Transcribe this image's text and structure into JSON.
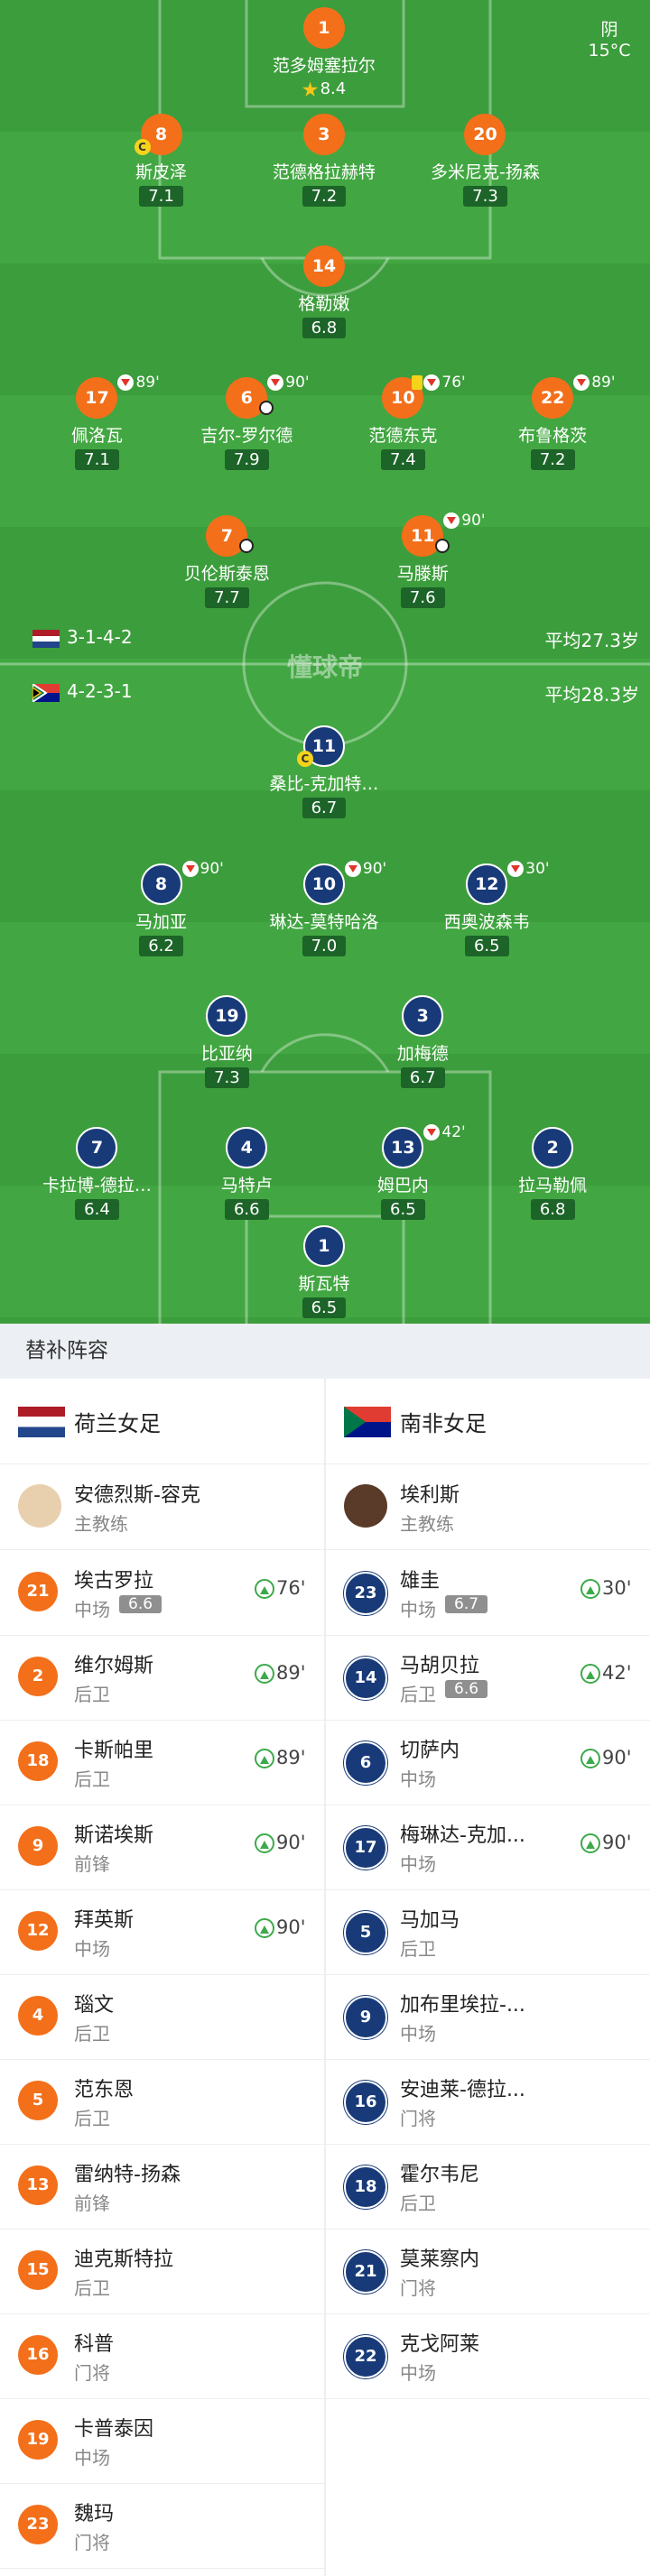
{
  "weather": {
    "condition": "阴",
    "temperature": "15°C"
  },
  "watermark": "懂球帝",
  "home": {
    "formation": "3-1-4-2",
    "average_age": "平均27.3岁",
    "players": [
      {
        "number": "1",
        "name": "范多姆塞拉尔",
        "rating": "8.4",
        "best": true
      },
      {
        "number": "8",
        "name": "斯皮泽",
        "rating": "7.1",
        "captain": "C"
      },
      {
        "number": "3",
        "name": "范德格拉赫特",
        "rating": "7.2"
      },
      {
        "number": "20",
        "name": "多米尼克-扬森",
        "rating": "7.3"
      },
      {
        "number": "14",
        "name": "格勒嫩",
        "rating": "6.8"
      },
      {
        "number": "17",
        "name": "佩洛瓦",
        "rating": "7.1",
        "sub_minute": "89'"
      },
      {
        "number": "6",
        "name": "吉尔-罗尔德",
        "rating": "7.9",
        "sub_minute": "90'",
        "goal": true
      },
      {
        "number": "10",
        "name": "范德东克",
        "rating": "7.4",
        "sub_minute": "76'",
        "yellow_card": true
      },
      {
        "number": "22",
        "name": "布鲁格茨",
        "rating": "7.2",
        "sub_minute": "89'"
      },
      {
        "number": "7",
        "name": "贝伦斯泰恩",
        "rating": "7.7",
        "goal": true
      },
      {
        "number": "11",
        "name": "马滕斯",
        "rating": "7.6",
        "sub_minute": "90'",
        "assist": true
      }
    ]
  },
  "away": {
    "formation": "4-2-3-1",
    "average_age": "平均28.3岁",
    "players": [
      {
        "number": "11",
        "name": "桑比-克加特…",
        "rating": "6.7",
        "captain": "C"
      },
      {
        "number": "8",
        "name": "马加亚",
        "rating": "6.2",
        "sub_minute": "90'"
      },
      {
        "number": "10",
        "name": "琳达-莫特哈洛",
        "rating": "7.0",
        "sub_minute": "90'"
      },
      {
        "number": "12",
        "name": "西奥波森韦",
        "rating": "6.5",
        "sub_minute": "30'"
      },
      {
        "number": "19",
        "name": "比亚纳",
        "rating": "7.3"
      },
      {
        "number": "3",
        "name": "加梅德",
        "rating": "6.7"
      },
      {
        "number": "7",
        "name": "卡拉博-德拉…",
        "rating": "6.4"
      },
      {
        "number": "4",
        "name": "马特卢",
        "rating": "6.6"
      },
      {
        "number": "13",
        "name": "姆巴内",
        "rating": "6.5",
        "sub_minute": "42'"
      },
      {
        "number": "2",
        "name": "拉马勒佩",
        "rating": "6.8"
      },
      {
        "number": "1",
        "name": "斯瓦特",
        "rating": "6.5"
      }
    ]
  },
  "bench": {
    "title": "替补阵容",
    "teams": [
      {
        "name": "荷兰女足",
        "coach": {
          "name": "安德烈斯-容克",
          "role": "主教练"
        },
        "players": [
          {
            "number": "21",
            "name": "埃古罗拉",
            "position": "中场",
            "rating": "6.6",
            "sub_in": "76'"
          },
          {
            "number": "2",
            "name": "维尔姆斯",
            "position": "后卫",
            "sub_in": "89'"
          },
          {
            "number": "18",
            "name": "卡斯帕里",
            "position": "后卫",
            "sub_in": "89'"
          },
          {
            "number": "9",
            "name": "斯诺埃斯",
            "position": "前锋",
            "sub_in": "90'"
          },
          {
            "number": "12",
            "name": "拜英斯",
            "position": "中场",
            "sub_in": "90'"
          },
          {
            "number": "4",
            "name": "瑙文",
            "position": "后卫"
          },
          {
            "number": "5",
            "name": "范东恩",
            "position": "后卫"
          },
          {
            "number": "13",
            "name": "雷纳特-扬森",
            "position": "前锋"
          },
          {
            "number": "15",
            "name": "迪克斯特拉",
            "position": "后卫"
          },
          {
            "number": "16",
            "name": "科普",
            "position": "门将"
          },
          {
            "number": "19",
            "name": "卡普泰因",
            "position": "中场"
          },
          {
            "number": "23",
            "name": "魏玛",
            "position": "门将"
          }
        ]
      },
      {
        "name": "南非女足",
        "coach": {
          "name": "埃利斯",
          "role": "主教练"
        },
        "players": [
          {
            "number": "23",
            "name": "雄圭",
            "position": "中场",
            "rating": "6.7",
            "sub_in": "30'"
          },
          {
            "number": "14",
            "name": "马胡贝拉",
            "position": "后卫",
            "rating": "6.6",
            "sub_in": "42'"
          },
          {
            "number": "6",
            "name": "切萨内",
            "position": "中场",
            "sub_in": "90'"
          },
          {
            "number": "17",
            "name": "梅琳达-克加...",
            "position": "中场",
            "sub_in": "90'"
          },
          {
            "number": "5",
            "name": "马加马",
            "position": "后卫"
          },
          {
            "number": "9",
            "name": "加布里埃拉-...",
            "position": "中场"
          },
          {
            "number": "16",
            "name": "安迪莱-德拉...",
            "position": "门将"
          },
          {
            "number": "18",
            "name": "霍尔韦尼",
            "position": "后卫"
          },
          {
            "number": "21",
            "name": "莫莱察内",
            "position": "门将"
          },
          {
            "number": "22",
            "name": "克戈阿莱",
            "position": "中场"
          }
        ]
      }
    ]
  }
}
